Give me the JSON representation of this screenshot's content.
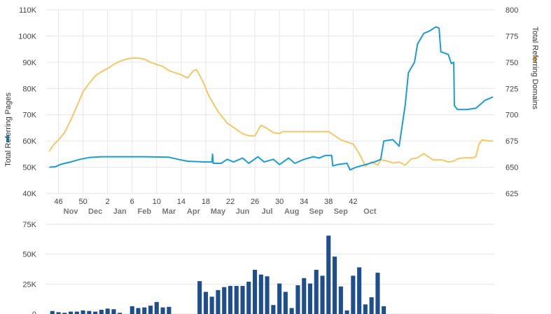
{
  "colors": {
    "pages_line": "#1f9bd3",
    "domains_line": "#f3c76a",
    "bars": "#1f4e8c",
    "grid": "#e6e6e6"
  },
  "chart_data": [
    {
      "type": "line",
      "y_left_label": "Total Referring Pages",
      "y_right_label": "Total Referring Domains",
      "y_left_ticks": [
        "40K",
        "50K",
        "60K",
        "70K",
        "80K",
        "90K",
        "100K",
        "110K"
      ],
      "y_left_range": [
        40000,
        110000
      ],
      "y_right_ticks": [
        "625",
        "650",
        "675",
        "700",
        "725",
        "750",
        "775",
        "800"
      ],
      "y_right_range": [
        625,
        800
      ],
      "x_week_ticks": [
        "46",
        "50",
        "2",
        "6",
        "10",
        "14",
        "18",
        "22",
        "26",
        "30",
        "34",
        "38",
        "42"
      ],
      "x_month_ticks": [
        "Nov",
        "Dec",
        "Jan",
        "Feb",
        "Mar",
        "Apr",
        "May",
        "Jun",
        "Jul",
        "Aug",
        "Sep",
        "Sep",
        "Oct"
      ],
      "grid": true,
      "series": [
        {
          "name": "Total Referring Pages",
          "axis": "left",
          "points": [
            [
              44.5,
              50000
            ],
            [
              45.5,
              50200
            ],
            [
              46.5,
              51200
            ],
            [
              48,
              52000
            ],
            [
              49.5,
              53000
            ],
            [
              51,
              53700
            ],
            [
              53,
              54000
            ],
            [
              56,
              54000
            ],
            [
              60,
              54000
            ],
            [
              64,
              53800
            ],
            [
              65.5,
              53000
            ],
            [
              67,
              52300
            ],
            [
              70,
              52000
            ],
            [
              71,
              52000
            ],
            [
              71.1,
              55000
            ],
            [
              71.2,
              51500
            ],
            [
              72.5,
              51500
            ],
            [
              73.5,
              53000
            ],
            [
              74.5,
              52000
            ],
            [
              76,
              53500
            ],
            [
              77,
              51500
            ],
            [
              78.5,
              54000
            ],
            [
              79.5,
              52000
            ],
            [
              81,
              53000
            ],
            [
              82,
              51000
            ],
            [
              83.5,
              53500
            ],
            [
              84.5,
              51500
            ],
            [
              86,
              53000
            ],
            [
              87.5,
              54000
            ],
            [
              88.5,
              53500
            ],
            [
              89.5,
              54500
            ],
            [
              90.5,
              54500
            ],
            [
              90.7,
              50500
            ],
            [
              91.5,
              51000
            ],
            [
              93,
              51500
            ],
            [
              93.5,
              49000
            ],
            [
              94.5,
              50000
            ],
            [
              96,
              51000
            ],
            [
              97.5,
              52000
            ],
            [
              98.5,
              53000
            ],
            [
              99,
              60000
            ],
            [
              100.5,
              60500
            ],
            [
              101.5,
              58000
            ],
            [
              102.5,
              74000
            ],
            [
              103,
              86000
            ],
            [
              104,
              90000
            ],
            [
              104.5,
              97000
            ],
            [
              105.5,
              101000
            ],
            [
              106.5,
              102000
            ],
            [
              107.5,
              103500
            ],
            [
              108,
              103000
            ],
            [
              108.3,
              94000
            ],
            [
              109.5,
              93000
            ],
            [
              110,
              89500
            ],
            [
              110.4,
              90000
            ],
            [
              110.5,
              73500
            ],
            [
              111,
              72000
            ],
            [
              112.5,
              72000
            ],
            [
              114,
              72500
            ],
            [
              114.5,
              73500
            ],
            [
              115.5,
              75500
            ],
            [
              116.8,
              76800
            ]
          ]
        },
        {
          "name": "Total Referring Domains",
          "axis": "right",
          "points": [
            [
              44.5,
              665
            ],
            [
              45,
              670
            ],
            [
              46,
              676
            ],
            [
              47,
              683
            ],
            [
              48,
              695
            ],
            [
              49,
              708
            ],
            [
              50,
              722
            ],
            [
              51,
              730
            ],
            [
              52,
              737
            ],
            [
              53,
              741
            ],
            [
              54,
              744
            ],
            [
              55,
              748
            ],
            [
              56,
              751
            ],
            [
              57,
              753
            ],
            [
              58,
              754
            ],
            [
              59,
              754
            ],
            [
              60,
              753
            ],
            [
              61,
              750
            ],
            [
              62,
              748
            ],
            [
              63,
              746
            ],
            [
              64,
              742
            ],
            [
              65,
              740
            ],
            [
              66,
              738
            ],
            [
              67,
              735
            ],
            [
              68,
              742
            ],
            [
              68.5,
              743
            ],
            [
              69.5,
              732
            ],
            [
              70.5,
              718
            ],
            [
              72,
              703
            ],
            [
              73.5,
              692
            ],
            [
              75,
              686
            ],
            [
              76,
              682
            ],
            [
              77,
              680
            ],
            [
              78,
              680
            ],
            [
              79,
              690
            ],
            [
              80,
              687
            ],
            [
              81,
              683
            ],
            [
              82,
              682
            ],
            [
              82.5,
              684
            ],
            [
              90,
              684
            ],
            [
              91,
              680
            ],
            [
              92,
              676
            ],
            [
              94,
              672
            ],
            [
              95,
              663
            ],
            [
              96,
              651
            ],
            [
              97,
              655
            ],
            [
              98,
              652
            ],
            [
              98.5,
              657
            ],
            [
              99.5,
              656
            ],
            [
              100.5,
              654
            ],
            [
              101.5,
              655
            ],
            [
              102.5,
              652
            ],
            [
              103.5,
              658
            ],
            [
              104.5,
              659
            ],
            [
              105.5,
              663
            ],
            [
              106.5,
              659
            ],
            [
              107,
              657
            ],
            [
              108.5,
              657
            ],
            [
              109.5,
              655
            ],
            [
              110.5,
              656
            ],
            [
              111,
              658
            ],
            [
              112,
              659
            ],
            [
              113.5,
              659
            ],
            [
              114,
              660
            ],
            [
              114.5,
              672
            ],
            [
              115,
              676
            ],
            [
              116,
              675
            ],
            [
              116.8,
              675
            ]
          ]
        }
      ]
    },
    {
      "type": "bar",
      "y_ticks": [
        "0",
        "25K",
        "50K",
        "75K"
      ],
      "y_range": [
        0,
        75000
      ],
      "grid": true,
      "series": [
        {
          "values": [
            [
              45,
              2500
            ],
            [
              46,
              1500
            ],
            [
              47,
              1000
            ],
            [
              48,
              2000
            ],
            [
              49,
              2000
            ],
            [
              50,
              3000
            ],
            [
              51,
              2500
            ],
            [
              52,
              2000
            ],
            [
              53,
              3500
            ],
            [
              54,
              4500
            ],
            [
              55,
              4000
            ],
            [
              56,
              1000
            ],
            [
              58,
              6500
            ],
            [
              59,
              5000
            ],
            [
              60,
              5500
            ],
            [
              61,
              7000
            ],
            [
              62,
              10000
            ],
            [
              63,
              5500
            ],
            [
              64,
              6000
            ],
            [
              69,
              27500
            ],
            [
              70,
              18500
            ],
            [
              71,
              14500
            ],
            [
              72,
              20000
            ],
            [
              73,
              22500
            ],
            [
              74,
              23500
            ],
            [
              75,
              23500
            ],
            [
              76,
              23500
            ],
            [
              77,
              27000
            ],
            [
              78,
              37000
            ],
            [
              79,
              33000
            ],
            [
              80,
              31500
            ],
            [
              81,
              7500
            ],
            [
              82,
              25500
            ],
            [
              83,
              18500
            ],
            [
              84,
              5000
            ],
            [
              85,
              24000
            ],
            [
              86,
              30000
            ],
            [
              87,
              25500
            ],
            [
              88,
              37000
            ],
            [
              89,
              32000
            ],
            [
              90,
              65500
            ],
            [
              91,
              48000
            ],
            [
              92,
              23000
            ],
            [
              93,
              3000
            ],
            [
              94,
              32000
            ],
            [
              95,
              39000
            ],
            [
              96,
              8000
            ],
            [
              97,
              14000
            ],
            [
              98,
              34500
            ],
            [
              99,
              6500
            ]
          ]
        }
      ]
    }
  ]
}
